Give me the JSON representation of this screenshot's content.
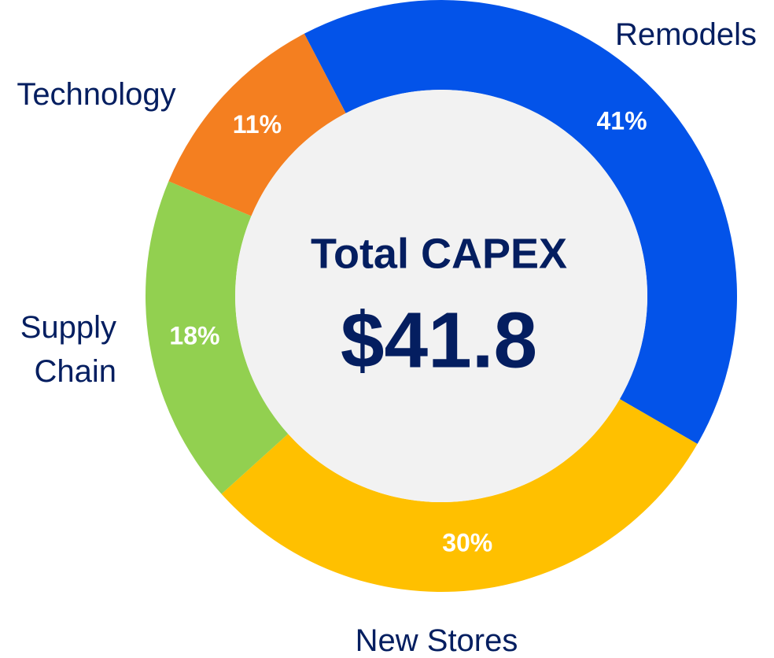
{
  "chart_data": {
    "type": "donut",
    "categories": [
      "Remodels",
      "New Stores",
      "Supply Chain",
      "Technology"
    ],
    "values": [
      41,
      30,
      18,
      11
    ],
    "value_labels": [
      "41%",
      "30%",
      "18%",
      "11%"
    ],
    "colors": [
      "#0353e9",
      "#ffc000",
      "#92d050",
      "#f47f20"
    ],
    "annotations": [
      "Total CAPEX",
      "$41.8"
    ]
  }
}
